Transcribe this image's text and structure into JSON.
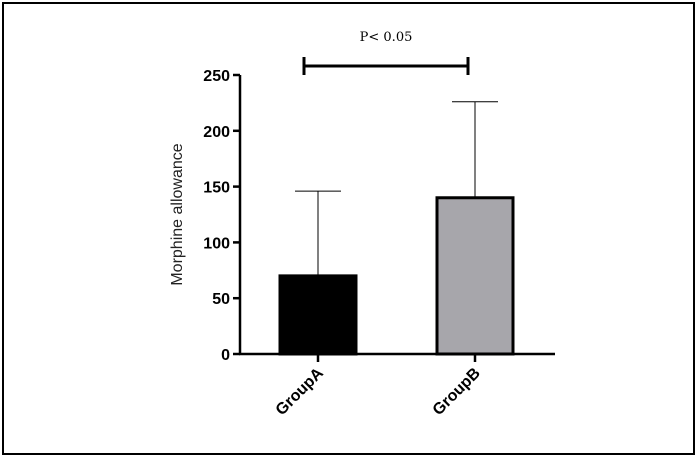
{
  "chart_data": {
    "type": "bar",
    "categories": [
      "GroupA",
      "GroupB"
    ],
    "values": [
      70,
      140
    ],
    "error_upper": [
      146,
      226
    ],
    "colors": [
      "#000000",
      "#a7a6ab"
    ],
    "ylabel": "Morphine allowance",
    "xlabel": "",
    "ylim": [
      0,
      250
    ],
    "yticks": [
      0,
      50,
      100,
      150,
      200,
      250
    ],
    "grid": false,
    "significance": {
      "from": "GroupA",
      "to": "GroupB",
      "label": "P< 0.05"
    }
  }
}
